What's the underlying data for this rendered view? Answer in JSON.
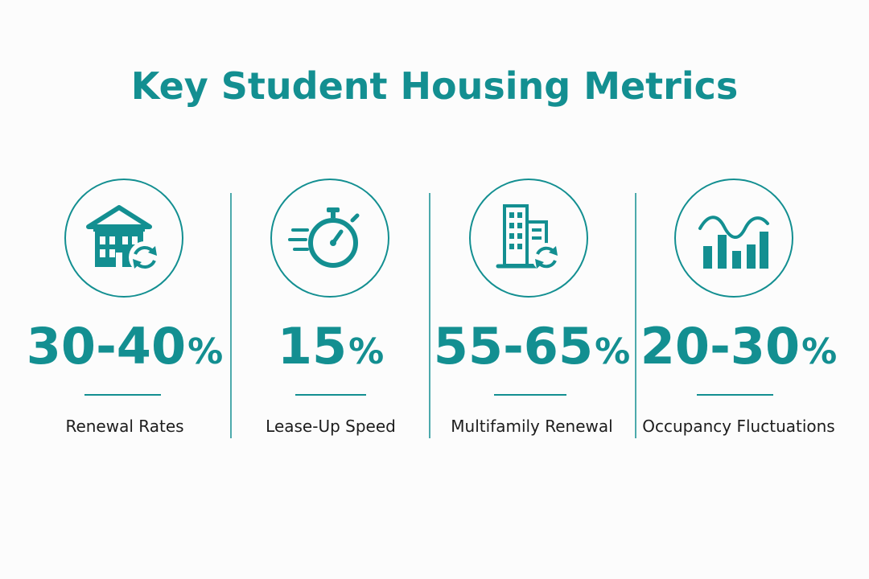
{
  "title": "Key Student Housing Metrics",
  "colors": {
    "accent": "#138f91",
    "text": "#1d1d1d",
    "background": "#fcfcfc"
  },
  "metrics": [
    {
      "value": "30-40",
      "unit": "%",
      "label": "Renewal Rates",
      "icon": "house-renewal-icon"
    },
    {
      "value": "15",
      "unit": "%",
      "label": "Lease-Up Speed",
      "icon": "stopwatch-icon"
    },
    {
      "value": "55-65",
      "unit": "%",
      "label": "Multifamily Renewal",
      "icon": "building-renewal-icon"
    },
    {
      "value": "20-30",
      "unit": "%",
      "label": "Occupancy Fluctuations",
      "icon": "bar-wave-chart-icon"
    }
  ]
}
